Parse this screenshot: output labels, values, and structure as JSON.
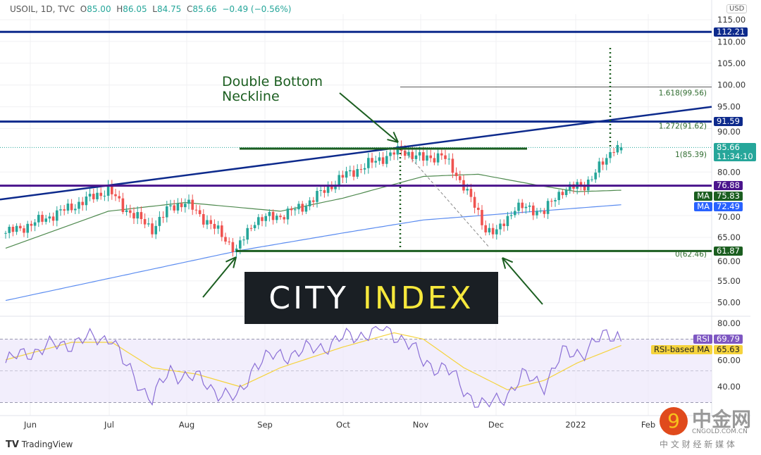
{
  "header": {
    "symbol": "USOIL, 1D, TVC",
    "open_label": "O",
    "open": "85.00",
    "high_label": "H",
    "high": "86.05",
    "low_label": "L",
    "low": "84.75",
    "close_label": "C",
    "close": "85.66",
    "change": "−0.49 (−0.56%)"
  },
  "currency": "USD",
  "annotation": {
    "line1": "Double Bottom",
    "line2": "Neckline"
  },
  "logo": {
    "part1": "CITY",
    "part2": "INDEX"
  },
  "branding": {
    "tradingview": "TradingView",
    "cngold": "中金网",
    "cngold_url_text": "CNGOLD.COM.CN",
    "cngold_sub": "中 文 财 经 新 媒 体"
  },
  "colors": {
    "up": "#26a69a",
    "down": "#ef5350",
    "navy": "#0d2a8c",
    "purple": "#4a148c",
    "green": "#1b5e20",
    "ma50": "#4f8a4f",
    "ma200": "#5b8cf0",
    "rsi": "#8b6fd6",
    "rsi_ma": "#f5d33d"
  },
  "chart_data": {
    "type": "candlestick",
    "title": "USOIL, 1D, TVC",
    "x_ticks": [
      "Jun",
      "Jul",
      "Aug",
      "Sep",
      "Oct",
      "Nov",
      "Dec",
      "2022",
      "Feb"
    ],
    "y_ticks": [
      "115.00",
      "110.00",
      "105.00",
      "100.00",
      "95.00",
      "90.00",
      "80.00",
      "70.00",
      "65.00",
      "60.00",
      "55.00",
      "50.00"
    ],
    "ylim": [
      45,
      117
    ],
    "close_waypoints": [
      [
        0,
        66
      ],
      [
        7,
        68
      ],
      [
        18,
        72
      ],
      [
        28,
        76
      ],
      [
        32,
        72
      ],
      [
        40,
        67
      ],
      [
        45,
        72
      ],
      [
        49,
        73
      ],
      [
        56,
        68
      ],
      [
        63,
        62
      ],
      [
        68,
        69
      ],
      [
        75,
        70
      ],
      [
        81,
        72
      ],
      [
        92,
        79
      ],
      [
        102,
        83
      ],
      [
        108,
        85
      ],
      [
        114,
        83
      ],
      [
        119,
        84
      ],
      [
        125,
        77
      ],
      [
        131,
        67
      ],
      [
        134,
        66
      ],
      [
        139,
        72
      ],
      [
        147,
        71
      ],
      [
        152,
        76
      ],
      [
        158,
        77
      ],
      [
        164,
        83
      ],
      [
        166,
        86
      ],
      [
        168,
        85.66
      ]
    ],
    "ma50_waypoints": [
      [
        0,
        62.5
      ],
      [
        28,
        71
      ],
      [
        49,
        73
      ],
      [
        75,
        71
      ],
      [
        92,
        74
      ],
      [
        114,
        79
      ],
      [
        129,
        79.5
      ],
      [
        145,
        77
      ],
      [
        156,
        75.5
      ],
      [
        168,
        75.83
      ]
    ],
    "ma200_waypoints": [
      [
        0,
        50.5
      ],
      [
        64,
        62
      ],
      [
        92,
        66
      ],
      [
        114,
        69
      ],
      [
        145,
        71
      ],
      [
        168,
        72.49
      ]
    ],
    "levels": [
      {
        "name": "resistance-112",
        "value": 112.21,
        "label": "112.21",
        "color": "#0d2a8c"
      },
      {
        "name": "resistance-91",
        "value": 91.59,
        "label": "91.59",
        "color": "#0d2a8c"
      },
      {
        "name": "support-76",
        "value": 76.88,
        "label": "76.88",
        "color": "#4a148c"
      },
      {
        "name": "double-bottom",
        "value": 61.87,
        "label": "61.87",
        "color": "#1b5e20"
      }
    ],
    "fib": [
      {
        "label": "1.618(99.56)",
        "value": 99.56
      },
      {
        "label": "1.272(91.62)",
        "value": 91.62
      },
      {
        "label": "1(85.39)",
        "value": 85.39
      },
      {
        "label": "0(62.46)",
        "value": 62.46
      }
    ],
    "price_label": {
      "value": "85.66",
      "countdown": "11:34:10"
    },
    "ma_labels": [
      {
        "name": "MA",
        "value": "75.83",
        "color": "#1b5e20"
      },
      {
        "name": "MA",
        "value": "72.49",
        "color": "#2962ff"
      }
    ],
    "rsi": {
      "y_ticks": [
        "80.00",
        "60.00",
        "40.00"
      ],
      "ylim": [
        25,
        80
      ],
      "bands": [
        70,
        30
      ],
      "rsi_label": "RSI",
      "rsi_value": "69.79",
      "ma_label": "RSI-based MA",
      "ma_value": "65.63",
      "rsi_waypoints": [
        [
          0,
          55
        ],
        [
          6,
          62
        ],
        [
          18,
          68
        ],
        [
          29,
          72
        ],
        [
          32,
          55
        ],
        [
          40,
          32
        ],
        [
          45,
          50
        ],
        [
          52,
          45
        ],
        [
          56,
          40
        ],
        [
          63,
          31
        ],
        [
          68,
          55
        ],
        [
          75,
          60
        ],
        [
          83,
          63
        ],
        [
          92,
          70
        ],
        [
          98,
          74
        ],
        [
          104,
          76
        ],
        [
          109,
          70
        ],
        [
          114,
          55
        ],
        [
          120,
          52
        ],
        [
          125,
          38
        ],
        [
          131,
          27
        ],
        [
          135,
          32
        ],
        [
          141,
          46
        ],
        [
          147,
          42
        ],
        [
          152,
          60
        ],
        [
          158,
          63
        ],
        [
          164,
          72
        ],
        [
          167,
          74
        ],
        [
          168,
          70
        ]
      ],
      "ma_waypoints": [
        [
          0,
          57
        ],
        [
          18,
          68
        ],
        [
          29,
          68
        ],
        [
          40,
          52
        ],
        [
          52,
          48
        ],
        [
          64,
          40
        ],
        [
          75,
          52
        ],
        [
          92,
          65
        ],
        [
          106,
          74
        ],
        [
          114,
          70
        ],
        [
          125,
          52
        ],
        [
          137,
          38
        ],
        [
          147,
          44
        ],
        [
          156,
          55
        ],
        [
          168,
          66
        ]
      ]
    }
  }
}
